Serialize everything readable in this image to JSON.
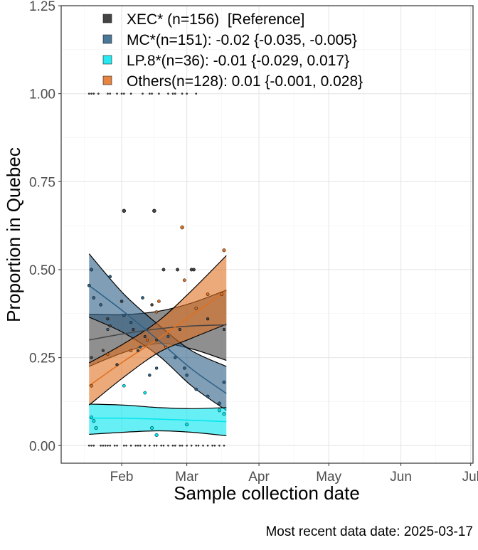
{
  "chart_data": {
    "type": "line",
    "title": "",
    "xlabel": "Sample collection date",
    "ylabel": "Proportion in Quebec",
    "caption": "Most recent data date: 2025-03-17",
    "xlim": [
      "2025-01-06",
      "2025-07-02"
    ],
    "ylim": [
      -0.05,
      1.25
    ],
    "x_ticks": [
      {
        "date": "2025-02-01",
        "label": "Feb"
      },
      {
        "date": "2025-03-01",
        "label": "Mar"
      },
      {
        "date": "2025-04-01",
        "label": "Apr"
      },
      {
        "date": "2025-05-01",
        "label": "May"
      },
      {
        "date": "2025-06-01",
        "label": "Jun"
      },
      {
        "date": "2025-07-01",
        "label": "Jul"
      }
    ],
    "y_ticks": [
      {
        "value": 0.0,
        "label": "0.00"
      },
      {
        "value": 0.25,
        "label": "0.25"
      },
      {
        "value": 0.5,
        "label": "0.50"
      },
      {
        "value": 0.75,
        "label": "0.75"
      },
      {
        "value": 1.0,
        "label": "1.00"
      },
      {
        "value": 1.25,
        "label": "1.25"
      }
    ],
    "grid": true,
    "legend_position": "top-left",
    "series": [
      {
        "name": "XEC* (n=156)  [Reference]",
        "color": "#444444",
        "x": [
          "2025-01-18",
          "2025-02-02",
          "2025-02-17",
          "2025-03-03",
          "2025-03-18"
        ],
        "fit": [
          0.3,
          0.318,
          0.332,
          0.34,
          0.343
        ],
        "lower": [
          0.225,
          0.265,
          0.29,
          0.275,
          0.242
        ],
        "upper": [
          0.373,
          0.372,
          0.382,
          0.405,
          0.442
        ]
      },
      {
        "name": "MC*(n=151): -0.02 {-0.035, -0.005}",
        "color": "#2b5f86",
        "x": [
          "2025-01-18",
          "2025-02-02",
          "2025-02-17",
          "2025-03-03",
          "2025-03-18"
        ],
        "fit": [
          0.455,
          0.38,
          0.298,
          0.218,
          0.148
        ],
        "lower": [
          0.365,
          0.32,
          0.255,
          0.17,
          0.1
        ],
        "upper": [
          0.545,
          0.43,
          0.342,
          0.27,
          0.225
        ]
      },
      {
        "name": "LP.8*(n=36): -0.01 {-0.029, 0.017}",
        "color": "#00e5ee",
        "x": [
          "2025-01-18",
          "2025-02-02",
          "2025-02-17",
          "2025-03-03",
          "2025-03-18"
        ],
        "fit": [
          0.078,
          0.078,
          0.075,
          0.072,
          0.068
        ],
        "lower": [
          0.032,
          0.038,
          0.042,
          0.038,
          0.028
        ],
        "upper": [
          0.118,
          0.115,
          0.108,
          0.105,
          0.108
        ]
      },
      {
        "name": "Others(n=128): 0.01 {-0.001, 0.028}",
        "color": "#e07020",
        "x": [
          "2025-01-18",
          "2025-02-02",
          "2025-02-17",
          "2025-03-03",
          "2025-03-18"
        ],
        "fit": [
          0.17,
          0.24,
          0.305,
          0.37,
          0.44
        ],
        "lower": [
          0.115,
          0.195,
          0.265,
          0.305,
          0.345
        ],
        "upper": [
          0.235,
          0.29,
          0.355,
          0.44,
          0.54
        ]
      }
    ],
    "points": {
      "xec": [
        [
          "2025-01-18",
          1
        ],
        [
          "2025-01-19",
          1
        ],
        [
          "2025-01-20",
          1
        ],
        [
          "2025-01-22",
          1
        ],
        [
          "2025-01-26",
          1
        ],
        [
          "2025-01-27",
          1
        ],
        [
          "2025-01-30",
          1
        ],
        [
          "2025-02-01",
          1
        ],
        [
          "2025-02-02",
          1
        ],
        [
          "2025-02-05",
          1
        ],
        [
          "2025-02-10",
          1
        ],
        [
          "2025-02-13",
          1
        ],
        [
          "2025-02-14",
          1
        ],
        [
          "2025-02-17",
          1
        ],
        [
          "2025-02-21",
          1
        ],
        [
          "2025-02-23",
          1
        ],
        [
          "2025-02-24",
          1
        ],
        [
          "2025-02-27",
          1
        ],
        [
          "2025-03-01",
          1
        ],
        [
          "2025-03-05",
          1
        ],
        [
          "2025-02-02",
          0.667
        ],
        [
          "2025-02-15",
          0.667
        ],
        [
          "2025-02-19",
          0.5
        ],
        [
          "2025-02-25",
          0.5
        ],
        [
          "2025-03-03",
          0.5
        ],
        [
          "2025-03-04",
          0.5
        ],
        [
          "2025-02-14",
          0.4
        ],
        [
          "2025-02-01",
          0.41
        ],
        [
          "2025-01-26",
          0.36
        ],
        [
          "2025-01-27",
          0.34
        ],
        [
          "2025-01-19",
          0.25
        ],
        [
          "2025-01-30",
          0.23
        ],
        [
          "2025-02-11",
          0.31
        ],
        [
          "2025-02-16",
          0.3
        ],
        [
          "2025-02-26",
          0.33
        ],
        [
          "2025-03-10",
          0.36
        ],
        [
          "2025-03-17",
          0.33
        ],
        [
          "2025-02-06",
          0.33
        ],
        [
          "2025-01-24",
          0.27
        ],
        [
          "2025-02-08",
          0.27
        ],
        [
          "2025-01-18",
          0
        ],
        [
          "2025-01-19",
          0
        ],
        [
          "2025-01-20",
          0
        ],
        [
          "2025-01-23",
          0
        ],
        [
          "2025-01-24",
          0
        ],
        [
          "2025-01-25",
          0
        ],
        [
          "2025-01-26",
          0
        ],
        [
          "2025-01-27",
          0
        ],
        [
          "2025-01-29",
          0
        ],
        [
          "2025-01-30",
          0
        ],
        [
          "2025-02-02",
          0
        ],
        [
          "2025-02-03",
          0
        ],
        [
          "2025-02-05",
          0
        ],
        [
          "2025-02-07",
          0
        ],
        [
          "2025-02-08",
          0
        ],
        [
          "2025-02-09",
          0
        ],
        [
          "2025-02-11",
          0
        ],
        [
          "2025-02-13",
          0
        ],
        [
          "2025-02-15",
          0
        ],
        [
          "2025-02-16",
          0
        ],
        [
          "2025-02-18",
          0
        ],
        [
          "2025-02-19",
          0
        ],
        [
          "2025-02-21",
          0
        ],
        [
          "2025-02-23",
          0
        ],
        [
          "2025-02-24",
          0
        ],
        [
          "2025-02-26",
          0
        ],
        [
          "2025-02-27",
          0
        ],
        [
          "2025-03-01",
          0
        ],
        [
          "2025-03-03",
          0
        ],
        [
          "2025-03-05",
          0
        ],
        [
          "2025-03-06",
          0
        ],
        [
          "2025-03-08",
          0
        ],
        [
          "2025-03-10",
          0
        ],
        [
          "2025-03-12",
          0
        ],
        [
          "2025-03-13",
          0
        ],
        [
          "2025-03-15",
          0
        ],
        [
          "2025-03-17",
          0
        ]
      ],
      "mc": [
        [
          "2025-01-19",
          0.5
        ],
        [
          "2025-01-18",
          0.455
        ],
        [
          "2025-01-20",
          0.42
        ],
        [
          "2025-01-27",
          0.48
        ],
        [
          "2025-01-23",
          0.4
        ],
        [
          "2025-02-02",
          0.37
        ],
        [
          "2025-01-26",
          0.33
        ],
        [
          "2025-02-05",
          0.35
        ],
        [
          "2025-02-09",
          0.28
        ],
        [
          "2025-02-13",
          0.2
        ],
        [
          "2025-02-21",
          0.31
        ],
        [
          "2025-02-24",
          0.25
        ],
        [
          "2025-03-01",
          0.2
        ],
        [
          "2025-03-05",
          0.16
        ],
        [
          "2025-03-10",
          0.14
        ],
        [
          "2025-03-15",
          0.12
        ],
        [
          "2025-03-17",
          0.18
        ],
        [
          "2025-02-10",
          0.42
        ],
        [
          "2025-02-16",
          0.22
        ],
        [
          "2025-02-28",
          0.22
        ]
      ],
      "lp8": [
        [
          "2025-01-19",
          0.08
        ],
        [
          "2025-01-20",
          0.07
        ],
        [
          "2025-01-21",
          0.05
        ],
        [
          "2025-02-02",
          0.17
        ],
        [
          "2025-02-11",
          0.15
        ],
        [
          "2025-02-14",
          0.05
        ],
        [
          "2025-02-16",
          0.03
        ],
        [
          "2025-03-01",
          0.06
        ],
        [
          "2025-03-15",
          0.1
        ],
        [
          "2025-03-17",
          0.09
        ]
      ],
      "others": [
        [
          "2025-01-19",
          0.17
        ],
        [
          "2025-01-26",
          0.26
        ],
        [
          "2025-02-05",
          0.27
        ],
        [
          "2025-02-12",
          0.3
        ],
        [
          "2025-02-16",
          0.38
        ],
        [
          "2025-02-17",
          0.41
        ],
        [
          "2025-02-20",
          0.28
        ],
        [
          "2025-02-27",
          0.62
        ],
        [
          "2025-02-28",
          0.47
        ],
        [
          "2025-03-05",
          0.39
        ],
        [
          "2025-03-10",
          0.43
        ],
        [
          "2025-03-16",
          0.43
        ],
        [
          "2025-03-17",
          0.555
        ]
      ]
    }
  }
}
